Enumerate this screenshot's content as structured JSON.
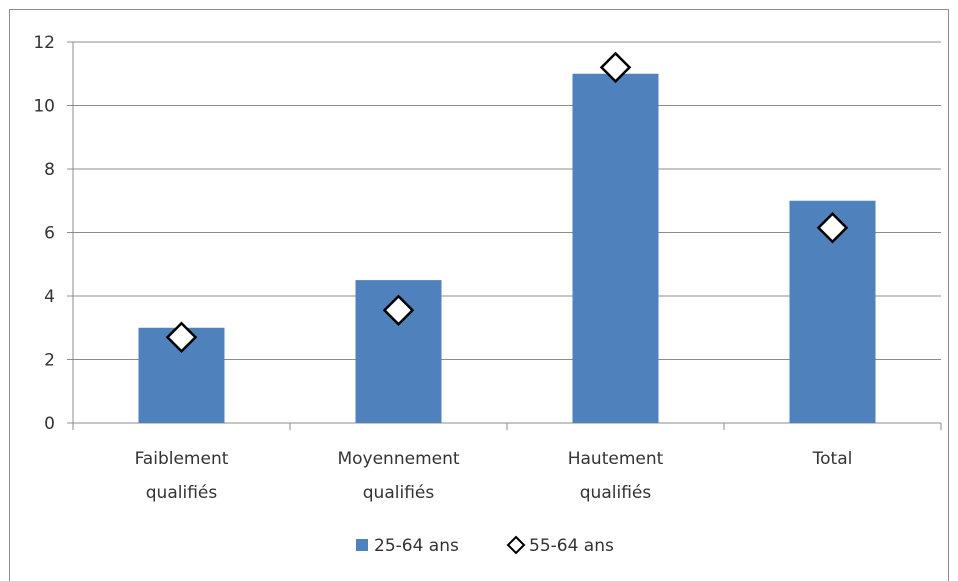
{
  "chart_data": {
    "type": "bar",
    "categories": [
      [
        "Faiblement",
        "qualifiés"
      ],
      [
        "Moyennement",
        "qualifiés"
      ],
      [
        "Hautement",
        "qualifiés"
      ],
      [
        "Total"
      ]
    ],
    "series": [
      {
        "name": "25-64 ans",
        "type": "bar",
        "values": [
          3.0,
          4.5,
          11.0,
          7.0
        ],
        "color": "#4f81bd"
      },
      {
        "name": "55-64 ans",
        "type": "marker",
        "marker": "diamond",
        "values": [
          2.7,
          3.55,
          11.2,
          6.15
        ],
        "color": "#000000"
      }
    ],
    "ylim": [
      0,
      12
    ],
    "yticks": [
      0,
      2,
      4,
      6,
      8,
      10,
      12
    ],
    "grid": true,
    "legend": "bottom",
    "title": "",
    "xlabel": "",
    "ylabel": ""
  }
}
